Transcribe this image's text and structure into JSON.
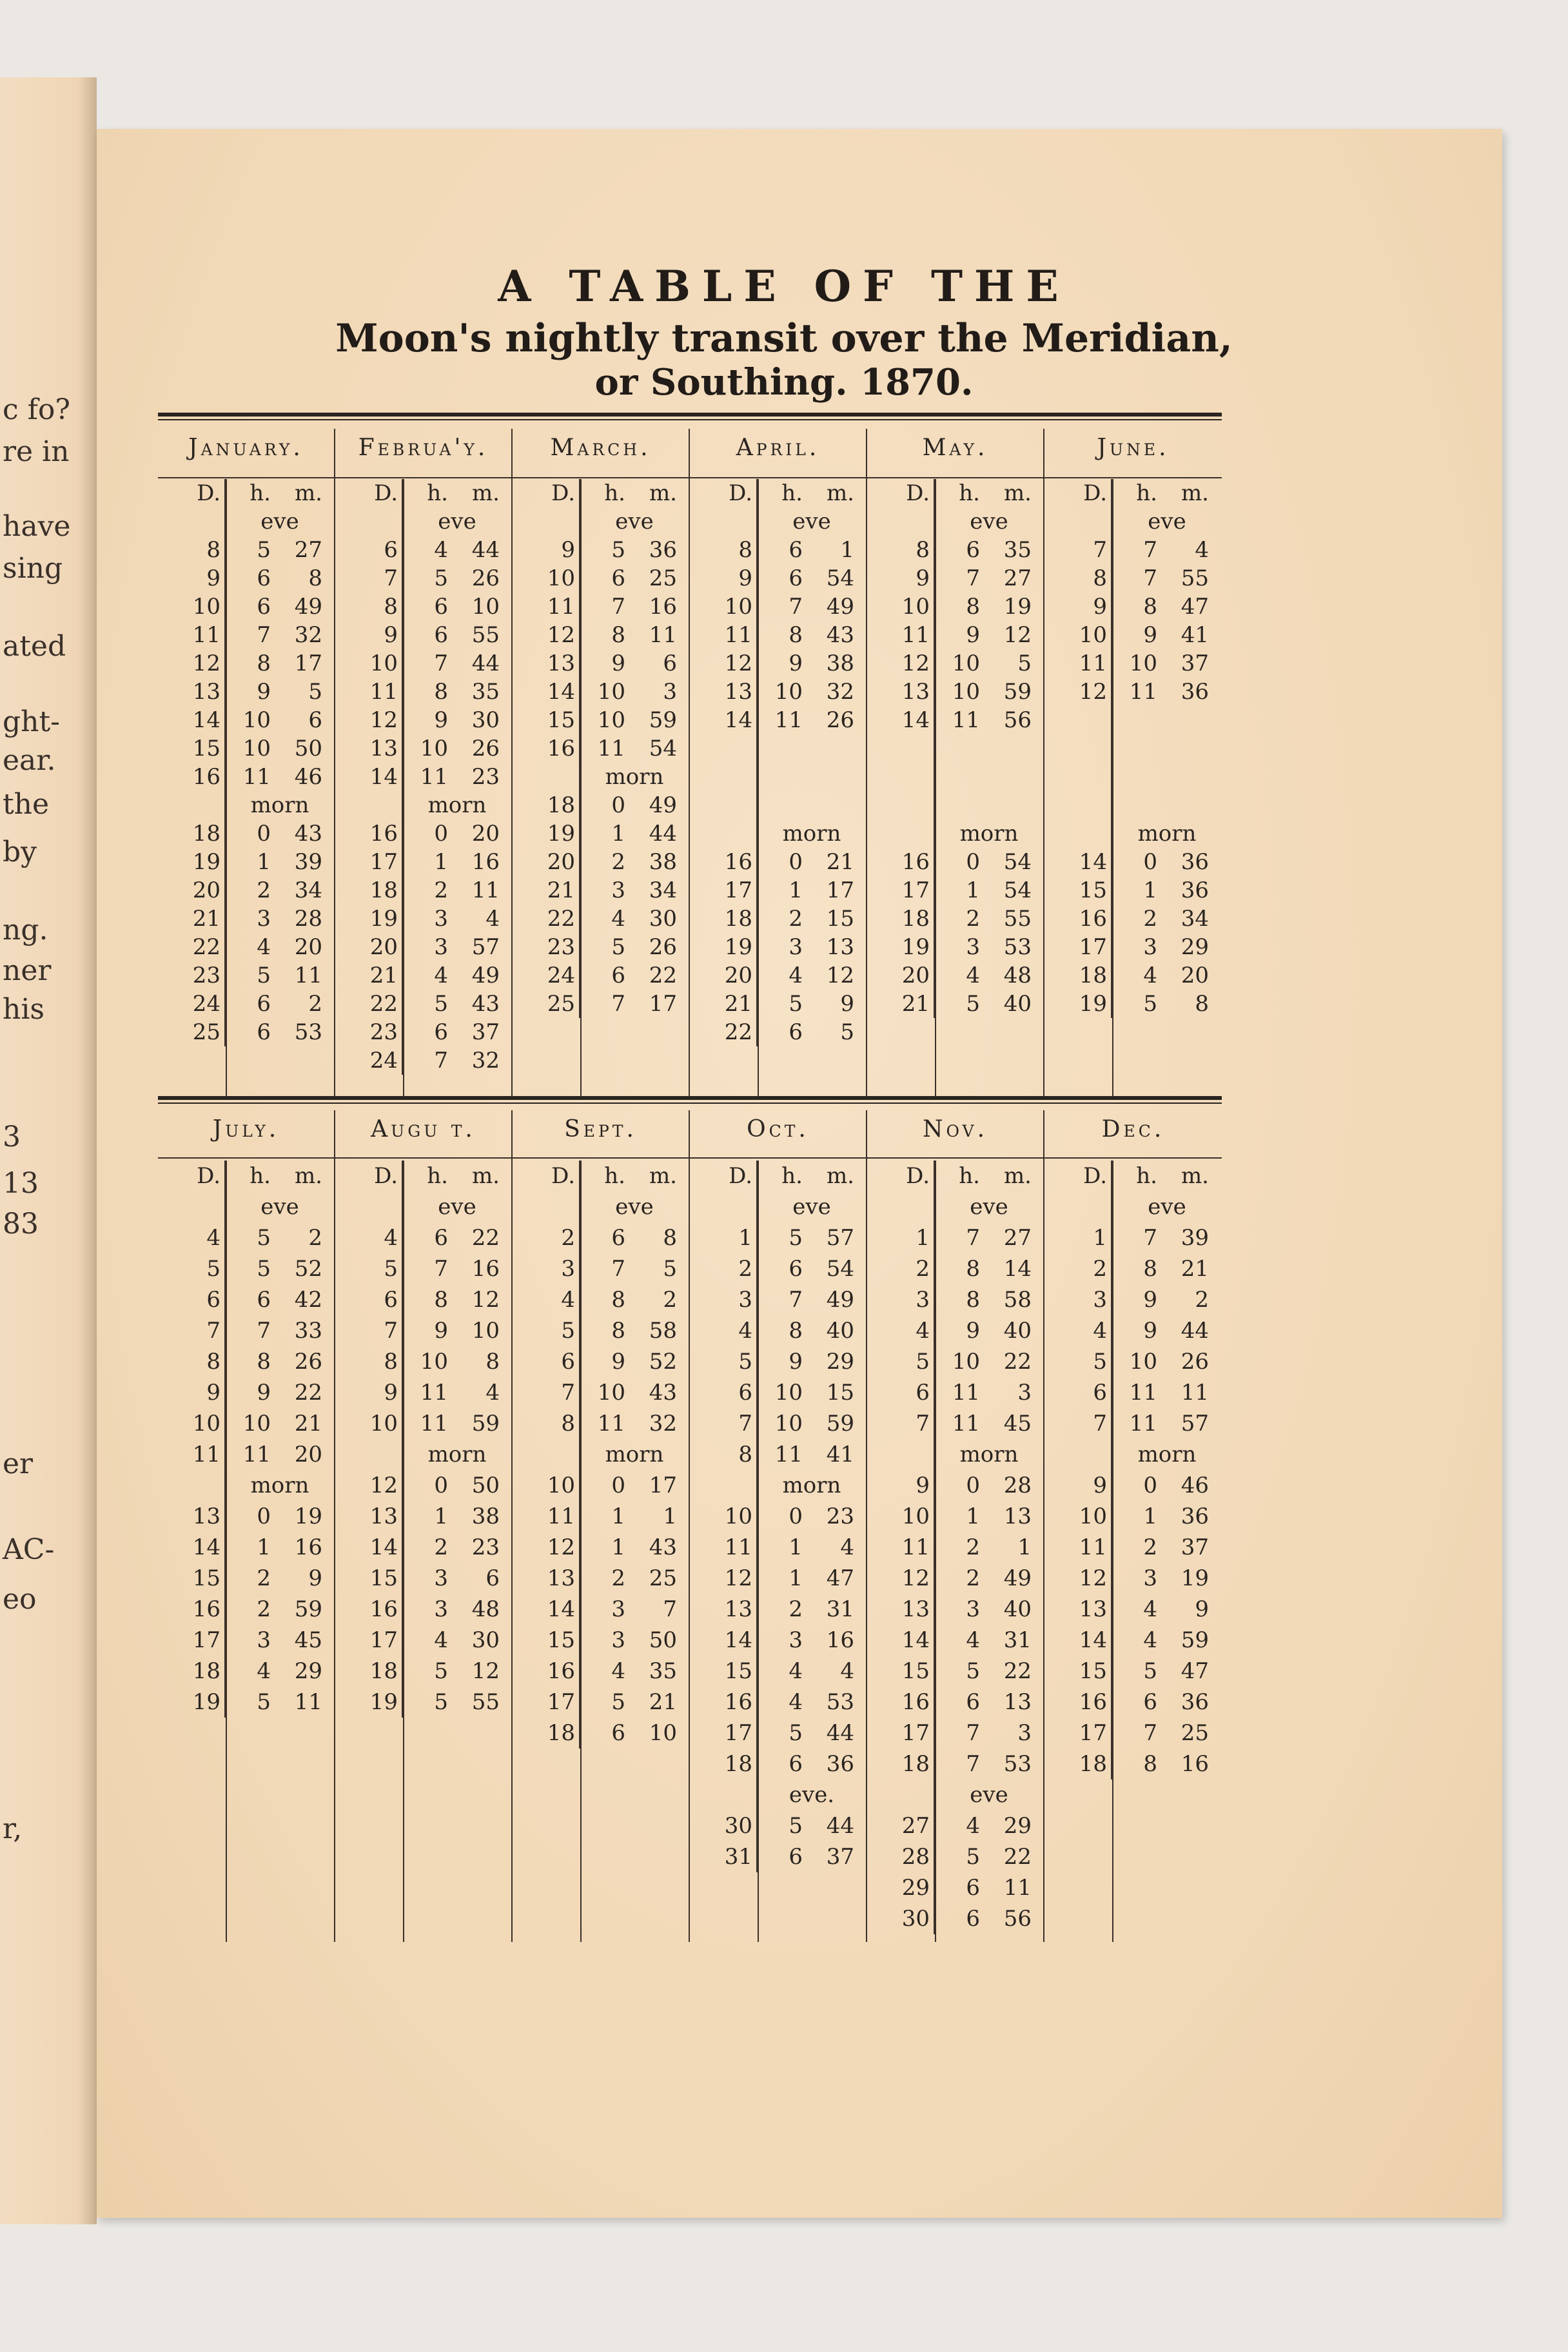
{
  "left_page_fragments": [
    "c fo?",
    "re in",
    "have",
    "sing",
    "ated",
    "ght-",
    "ear.",
    "the",
    "by",
    "ng.",
    "ner",
    "his",
    "3",
    "13",
    "83",
    "er",
    "AC-",
    "eo",
    "r,"
  ],
  "title": {
    "line1": "A TABLE OF THE",
    "line2": "Moon's nightly transit over the Meridian,",
    "line3": "or Southing. 1870."
  },
  "column_header": {
    "d": "D.",
    "h": "h.",
    "m": "m."
  },
  "top_table": [
    {
      "month": "January.",
      "rows": [
        {
          "label": "eve"
        },
        {
          "d": "8",
          "h": "5",
          "m": "27"
        },
        {
          "d": "9",
          "h": "6",
          "m": "8"
        },
        {
          "d": "10",
          "h": "6",
          "m": "49"
        },
        {
          "d": "11",
          "h": "7",
          "m": "32"
        },
        {
          "d": "12",
          "h": "8",
          "m": "17"
        },
        {
          "d": "13",
          "h": "9",
          "m": "5"
        },
        {
          "d": "14",
          "h": "10",
          "m": "6"
        },
        {
          "d": "15",
          "h": "10",
          "m": "50"
        },
        {
          "d": "16",
          "h": "11",
          "m": "46"
        },
        {
          "label": "morn"
        },
        {
          "d": "18",
          "h": "0",
          "m": "43"
        },
        {
          "d": "19",
          "h": "1",
          "m": "39"
        },
        {
          "d": "20",
          "h": "2",
          "m": "34"
        },
        {
          "d": "21",
          "h": "3",
          "m": "28"
        },
        {
          "d": "22",
          "h": "4",
          "m": "20"
        },
        {
          "d": "23",
          "h": "5",
          "m": "11"
        },
        {
          "d": "24",
          "h": "6",
          "m": "2"
        },
        {
          "d": "25",
          "h": "6",
          "m": "53"
        }
      ]
    },
    {
      "month": "Februa'y.",
      "rows": [
        {
          "label": "eve"
        },
        {
          "d": "6",
          "h": "4",
          "m": "44"
        },
        {
          "d": "7",
          "h": "5",
          "m": "26"
        },
        {
          "d": "8",
          "h": "6",
          "m": "10"
        },
        {
          "d": "9",
          "h": "6",
          "m": "55"
        },
        {
          "d": "10",
          "h": "7",
          "m": "44"
        },
        {
          "d": "11",
          "h": "8",
          "m": "35"
        },
        {
          "d": "12",
          "h": "9",
          "m": "30"
        },
        {
          "d": "13",
          "h": "10",
          "m": "26"
        },
        {
          "d": "14",
          "h": "11",
          "m": "23"
        },
        {
          "label": "morn"
        },
        {
          "d": "16",
          "h": "0",
          "m": "20"
        },
        {
          "d": "17",
          "h": "1",
          "m": "16"
        },
        {
          "d": "18",
          "h": "2",
          "m": "11"
        },
        {
          "d": "19",
          "h": "3",
          "m": "4"
        },
        {
          "d": "20",
          "h": "3",
          "m": "57"
        },
        {
          "d": "21",
          "h": "4",
          "m": "49"
        },
        {
          "d": "22",
          "h": "5",
          "m": "43"
        },
        {
          "d": "23",
          "h": "6",
          "m": "37"
        },
        {
          "d": "24",
          "h": "7",
          "m": "32"
        }
      ]
    },
    {
      "month": "March.",
      "rows": [
        {
          "label": "eve"
        },
        {
          "d": "9",
          "h": "5",
          "m": "36"
        },
        {
          "d": "10",
          "h": "6",
          "m": "25"
        },
        {
          "d": "11",
          "h": "7",
          "m": "16"
        },
        {
          "d": "12",
          "h": "8",
          "m": "11"
        },
        {
          "d": "13",
          "h": "9",
          "m": "6"
        },
        {
          "d": "14",
          "h": "10",
          "m": "3"
        },
        {
          "d": "15",
          "h": "10",
          "m": "59"
        },
        {
          "d": "16",
          "h": "11",
          "m": "54"
        },
        {
          "label": "morn"
        },
        {
          "d": "18",
          "h": "0",
          "m": "49"
        },
        {
          "d": "19",
          "h": "1",
          "m": "44"
        },
        {
          "d": "20",
          "h": "2",
          "m": "38"
        },
        {
          "d": "21",
          "h": "3",
          "m": "34"
        },
        {
          "d": "22",
          "h": "4",
          "m": "30"
        },
        {
          "d": "23",
          "h": "5",
          "m": "26"
        },
        {
          "d": "24",
          "h": "6",
          "m": "22"
        },
        {
          "d": "25",
          "h": "7",
          "m": "17"
        }
      ]
    },
    {
      "month": "April.",
      "rows": [
        {
          "label": "eve"
        },
        {
          "d": "8",
          "h": "6",
          "m": "1"
        },
        {
          "d": "9",
          "h": "6",
          "m": "54"
        },
        {
          "d": "10",
          "h": "7",
          "m": "49"
        },
        {
          "d": "11",
          "h": "8",
          "m": "43"
        },
        {
          "d": "12",
          "h": "9",
          "m": "38"
        },
        {
          "d": "13",
          "h": "10",
          "m": "32"
        },
        {
          "d": "14",
          "h": "11",
          "m": "26"
        },
        {},
        {},
        {},
        {
          "label": "morn"
        },
        {
          "d": "16",
          "h": "0",
          "m": "21"
        },
        {
          "d": "17",
          "h": "1",
          "m": "17"
        },
        {
          "d": "18",
          "h": "2",
          "m": "15"
        },
        {
          "d": "19",
          "h": "3",
          "m": "13"
        },
        {
          "d": "20",
          "h": "4",
          "m": "12"
        },
        {
          "d": "21",
          "h": "5",
          "m": "9"
        },
        {
          "d": "22",
          "h": "6",
          "m": "5"
        }
      ]
    },
    {
      "month": "May.",
      "rows": [
        {
          "label": "eve"
        },
        {
          "d": "8",
          "h": "6",
          "m": "35"
        },
        {
          "d": "9",
          "h": "7",
          "m": "27"
        },
        {
          "d": "10",
          "h": "8",
          "m": "19"
        },
        {
          "d": "11",
          "h": "9",
          "m": "12"
        },
        {
          "d": "12",
          "h": "10",
          "m": "5"
        },
        {
          "d": "13",
          "h": "10",
          "m": "59"
        },
        {
          "d": "14",
          "h": "11",
          "m": "56"
        },
        {},
        {},
        {},
        {
          "label": "morn"
        },
        {
          "d": "16",
          "h": "0",
          "m": "54"
        },
        {
          "d": "17",
          "h": "1",
          "m": "54"
        },
        {
          "d": "18",
          "h": "2",
          "m": "55"
        },
        {
          "d": "19",
          "h": "3",
          "m": "53"
        },
        {
          "d": "20",
          "h": "4",
          "m": "48"
        },
        {
          "d": "21",
          "h": "5",
          "m": "40"
        }
      ]
    },
    {
      "month": "June.",
      "rows": [
        {
          "label": "eve"
        },
        {
          "d": "7",
          "h": "7",
          "m": "4"
        },
        {
          "d": "8",
          "h": "7",
          "m": "55"
        },
        {
          "d": "9",
          "h": "8",
          "m": "47"
        },
        {
          "d": "10",
          "h": "9",
          "m": "41"
        },
        {
          "d": "11",
          "h": "10",
          "m": "37"
        },
        {
          "d": "12",
          "h": "11",
          "m": "36"
        },
        {},
        {},
        {},
        {},
        {
          "label": "morn"
        },
        {
          "d": "14",
          "h": "0",
          "m": "36"
        },
        {
          "d": "15",
          "h": "1",
          "m": "36"
        },
        {
          "d": "16",
          "h": "2",
          "m": "34"
        },
        {
          "d": "17",
          "h": "3",
          "m": "29"
        },
        {
          "d": "18",
          "h": "4",
          "m": "20"
        },
        {
          "d": "19",
          "h": "5",
          "m": "8"
        }
      ]
    }
  ],
  "bottom_table": [
    {
      "month": "July.",
      "rows": [
        {
          "label": "eve"
        },
        {
          "d": "4",
          "h": "5",
          "m": "2"
        },
        {
          "d": "5",
          "h": "5",
          "m": "52"
        },
        {
          "d": "6",
          "h": "6",
          "m": "42"
        },
        {
          "d": "7",
          "h": "7",
          "m": "33"
        },
        {
          "d": "8",
          "h": "8",
          "m": "26"
        },
        {
          "d": "9",
          "h": "9",
          "m": "22"
        },
        {
          "d": "10",
          "h": "10",
          "m": "21"
        },
        {
          "d": "11",
          "h": "11",
          "m": "20"
        },
        {
          "label": "morn"
        },
        {
          "d": "13",
          "h": "0",
          "m": "19"
        },
        {
          "d": "14",
          "h": "1",
          "m": "16"
        },
        {
          "d": "15",
          "h": "2",
          "m": "9"
        },
        {
          "d": "16",
          "h": "2",
          "m": "59"
        },
        {
          "d": "17",
          "h": "3",
          "m": "45"
        },
        {
          "d": "18",
          "h": "4",
          "m": "29"
        },
        {
          "d": "19",
          "h": "5",
          "m": "11"
        }
      ]
    },
    {
      "month": "Augu t.",
      "rows": [
        {
          "label": "eve"
        },
        {
          "d": "4",
          "h": "6",
          "m": "22"
        },
        {
          "d": "5",
          "h": "7",
          "m": "16"
        },
        {
          "d": "6",
          "h": "8",
          "m": "12"
        },
        {
          "d": "7",
          "h": "9",
          "m": "10"
        },
        {
          "d": "8",
          "h": "10",
          "m": "8"
        },
        {
          "d": "9",
          "h": "11",
          "m": "4"
        },
        {
          "d": "10",
          "h": "11",
          "m": "59"
        },
        {
          "label": "morn"
        },
        {
          "d": "12",
          "h": "0",
          "m": "50"
        },
        {
          "d": "13",
          "h": "1",
          "m": "38"
        },
        {
          "d": "14",
          "h": "2",
          "m": "23"
        },
        {
          "d": "15",
          "h": "3",
          "m": "6"
        },
        {
          "d": "16",
          "h": "3",
          "m": "48"
        },
        {
          "d": "17",
          "h": "4",
          "m": "30"
        },
        {
          "d": "18",
          "h": "5",
          "m": "12"
        },
        {
          "d": "19",
          "h": "5",
          "m": "55"
        }
      ]
    },
    {
      "month": "Sept.",
      "rows": [
        {
          "label": "eve"
        },
        {
          "d": "2",
          "h": "6",
          "m": "8"
        },
        {
          "d": "3",
          "h": "7",
          "m": "5"
        },
        {
          "d": "4",
          "h": "8",
          "m": "2"
        },
        {
          "d": "5",
          "h": "8",
          "m": "58"
        },
        {
          "d": "6",
          "h": "9",
          "m": "52"
        },
        {
          "d": "7",
          "h": "10",
          "m": "43"
        },
        {
          "d": "8",
          "h": "11",
          "m": "32"
        },
        {
          "label": "morn"
        },
        {
          "d": "10",
          "h": "0",
          "m": "17"
        },
        {
          "d": "11",
          "h": "1",
          "m": "1"
        },
        {
          "d": "12",
          "h": "1",
          "m": "43"
        },
        {
          "d": "13",
          "h": "2",
          "m": "25"
        },
        {
          "d": "14",
          "h": "3",
          "m": "7"
        },
        {
          "d": "15",
          "h": "3",
          "m": "50"
        },
        {
          "d": "16",
          "h": "4",
          "m": "35"
        },
        {
          "d": "17",
          "h": "5",
          "m": "21"
        },
        {
          "d": "18",
          "h": "6",
          "m": "10"
        }
      ]
    },
    {
      "month": "Oct.",
      "rows": [
        {
          "label": "eve"
        },
        {
          "d": "1",
          "h": "5",
          "m": "57"
        },
        {
          "d": "2",
          "h": "6",
          "m": "54"
        },
        {
          "d": "3",
          "h": "7",
          "m": "49"
        },
        {
          "d": "4",
          "h": "8",
          "m": "40"
        },
        {
          "d": "5",
          "h": "9",
          "m": "29"
        },
        {
          "d": "6",
          "h": "10",
          "m": "15"
        },
        {
          "d": "7",
          "h": "10",
          "m": "59"
        },
        {
          "d": "8",
          "h": "11",
          "m": "41"
        },
        {
          "label": "morn"
        },
        {
          "d": "10",
          "h": "0",
          "m": "23"
        },
        {
          "d": "11",
          "h": "1",
          "m": "4"
        },
        {
          "d": "12",
          "h": "1",
          "m": "47"
        },
        {
          "d": "13",
          "h": "2",
          "m": "31"
        },
        {
          "d": "14",
          "h": "3",
          "m": "16"
        },
        {
          "d": "15",
          "h": "4",
          "m": "4"
        },
        {
          "d": "16",
          "h": "4",
          "m": "53"
        },
        {
          "d": "17",
          "h": "5",
          "m": "44"
        },
        {
          "d": "18",
          "h": "6",
          "m": "36"
        },
        {
          "label": "eve."
        },
        {
          "d": "30",
          "h": "5",
          "m": "44"
        },
        {
          "d": "31",
          "h": "6",
          "m": "37"
        }
      ]
    },
    {
      "month": "Nov.",
      "rows": [
        {
          "label": "eve"
        },
        {
          "d": "1",
          "h": "7",
          "m": "27"
        },
        {
          "d": "2",
          "h": "8",
          "m": "14"
        },
        {
          "d": "3",
          "h": "8",
          "m": "58"
        },
        {
          "d": "4",
          "h": "9",
          "m": "40"
        },
        {
          "d": "5",
          "h": "10",
          "m": "22"
        },
        {
          "d": "6",
          "h": "11",
          "m": "3"
        },
        {
          "d": "7",
          "h": "11",
          "m": "45"
        },
        {
          "label": "morn"
        },
        {
          "d": "9",
          "h": "0",
          "m": "28"
        },
        {
          "d": "10",
          "h": "1",
          "m": "13"
        },
        {
          "d": "11",
          "h": "2",
          "m": "1"
        },
        {
          "d": "12",
          "h": "2",
          "m": "49"
        },
        {
          "d": "13",
          "h": "3",
          "m": "40"
        },
        {
          "d": "14",
          "h": "4",
          "m": "31"
        },
        {
          "d": "15",
          "h": "5",
          "m": "22"
        },
        {
          "d": "16",
          "h": "6",
          "m": "13"
        },
        {
          "d": "17",
          "h": "7",
          "m": "3"
        },
        {
          "d": "18",
          "h": "7",
          "m": "53"
        },
        {
          "label": "eve"
        },
        {
          "d": "27",
          "h": "4",
          "m": "29"
        },
        {
          "d": "28",
          "h": "5",
          "m": "22"
        },
        {
          "d": "29",
          "h": "6",
          "m": "11"
        },
        {
          "d": "30",
          "h": "6",
          "m": "56"
        }
      ]
    },
    {
      "month": "Dec.",
      "rows": [
        {
          "label": "eve"
        },
        {
          "d": "1",
          "h": "7",
          "m": "39"
        },
        {
          "d": "2",
          "h": "8",
          "m": "21"
        },
        {
          "d": "3",
          "h": "9",
          "m": "2"
        },
        {
          "d": "4",
          "h": "9",
          "m": "44"
        },
        {
          "d": "5",
          "h": "10",
          "m": "26"
        },
        {
          "d": "6",
          "h": "11",
          "m": "11"
        },
        {
          "d": "7",
          "h": "11",
          "m": "57"
        },
        {
          "label": "morn"
        },
        {
          "d": "9",
          "h": "0",
          "m": "46"
        },
        {
          "d": "10",
          "h": "1",
          "m": "36"
        },
        {
          "d": "11",
          "h": "2",
          "m": "37"
        },
        {
          "d": "12",
          "h": "3",
          "m": "19"
        },
        {
          "d": "13",
          "h": "4",
          "m": "9"
        },
        {
          "d": "14",
          "h": "4",
          "m": "59"
        },
        {
          "d": "15",
          "h": "5",
          "m": "47"
        },
        {
          "d": "16",
          "h": "6",
          "m": "36"
        },
        {
          "d": "17",
          "h": "7",
          "m": "25"
        },
        {
          "d": "18",
          "h": "8",
          "m": "16"
        }
      ]
    }
  ]
}
